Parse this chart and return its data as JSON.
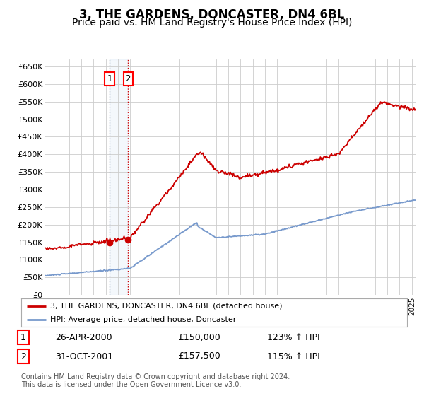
{
  "title": "3, THE GARDENS, DONCASTER, DN4 6BL",
  "subtitle": "Price paid vs. HM Land Registry's House Price Index (HPI)",
  "title_fontsize": 12,
  "subtitle_fontsize": 10,
  "xlim_start": 1995.0,
  "xlim_end": 2025.3,
  "ylim": [
    0,
    670000
  ],
  "yticks": [
    0,
    50000,
    100000,
    150000,
    200000,
    250000,
    300000,
    350000,
    400000,
    450000,
    500000,
    550000,
    600000,
    650000
  ],
  "ytick_labels": [
    "£0",
    "£50K",
    "£100K",
    "£150K",
    "£200K",
    "£250K",
    "£300K",
    "£350K",
    "£400K",
    "£450K",
    "£500K",
    "£550K",
    "£600K",
    "£650K"
  ],
  "background_color": "#ffffff",
  "grid_color": "#cccccc",
  "hpi_color": "#7799cc",
  "price_color": "#cc0000",
  "transaction1_x": 2000.32,
  "transaction1_y": 150000,
  "transaction2_x": 2001.83,
  "transaction2_y": 157500,
  "legend_line1": "3, THE GARDENS, DONCASTER, DN4 6BL (detached house)",
  "legend_line2": "HPI: Average price, detached house, Doncaster",
  "footnote": "Contains HM Land Registry data © Crown copyright and database right 2024.\nThis data is licensed under the Open Government Licence v3.0.",
  "table_row1": [
    "1",
    "26-APR-2000",
    "£150,000",
    "123% ↑ HPI"
  ],
  "table_row2": [
    "2",
    "31-OCT-2001",
    "£157,500",
    "115% ↑ HPI"
  ]
}
